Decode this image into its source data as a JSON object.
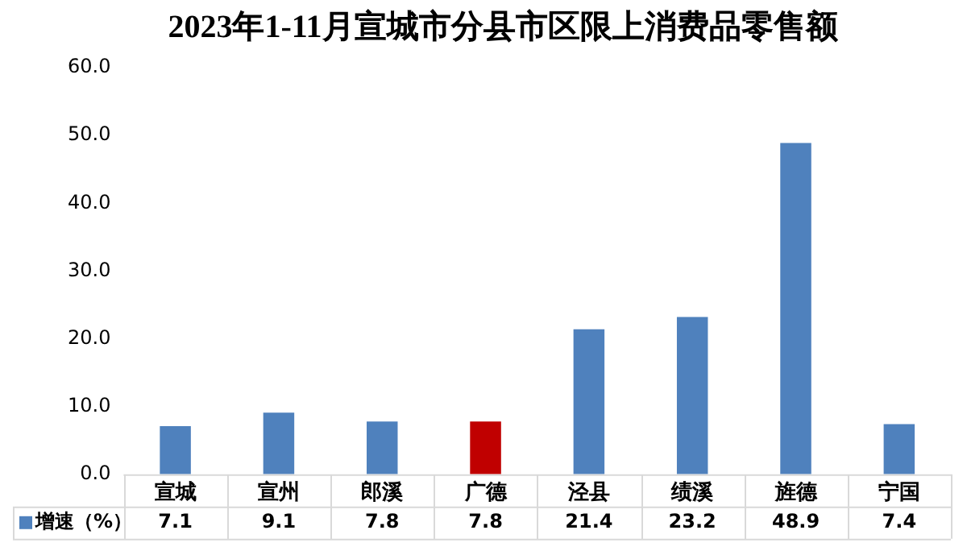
{
  "chart_data": {
    "type": "bar",
    "title": "2023年1-11月宣城市分县市区限上消费品零售额",
    "categories": [
      "宣城",
      "宣州",
      "郎溪",
      "广德",
      "泾县",
      "绩溪",
      "旌德",
      "宁国"
    ],
    "series": [
      {
        "name": "增速（%）",
        "color": "#4f81bd",
        "colors": [
          "#4f81bd",
          "#4f81bd",
          "#4f81bd",
          "#c00000",
          "#4f81bd",
          "#4f81bd",
          "#4f81bd",
          "#4f81bd"
        ],
        "values": [
          7.1,
          9.1,
          7.8,
          7.8,
          21.4,
          23.2,
          48.9,
          7.4
        ]
      }
    ],
    "ylim": [
      0,
      60
    ],
    "yticks": [
      {
        "value": 0,
        "label": "0.0"
      },
      {
        "value": 10,
        "label": "10.0"
      },
      {
        "value": 20,
        "label": "20.0"
      },
      {
        "value": 30,
        "label": "30.0"
      },
      {
        "value": 40,
        "label": "40.0"
      },
      {
        "value": 50,
        "label": "50.0"
      },
      {
        "value": 60,
        "label": "60.0"
      }
    ],
    "data_labels": true,
    "legend": "bottom"
  }
}
